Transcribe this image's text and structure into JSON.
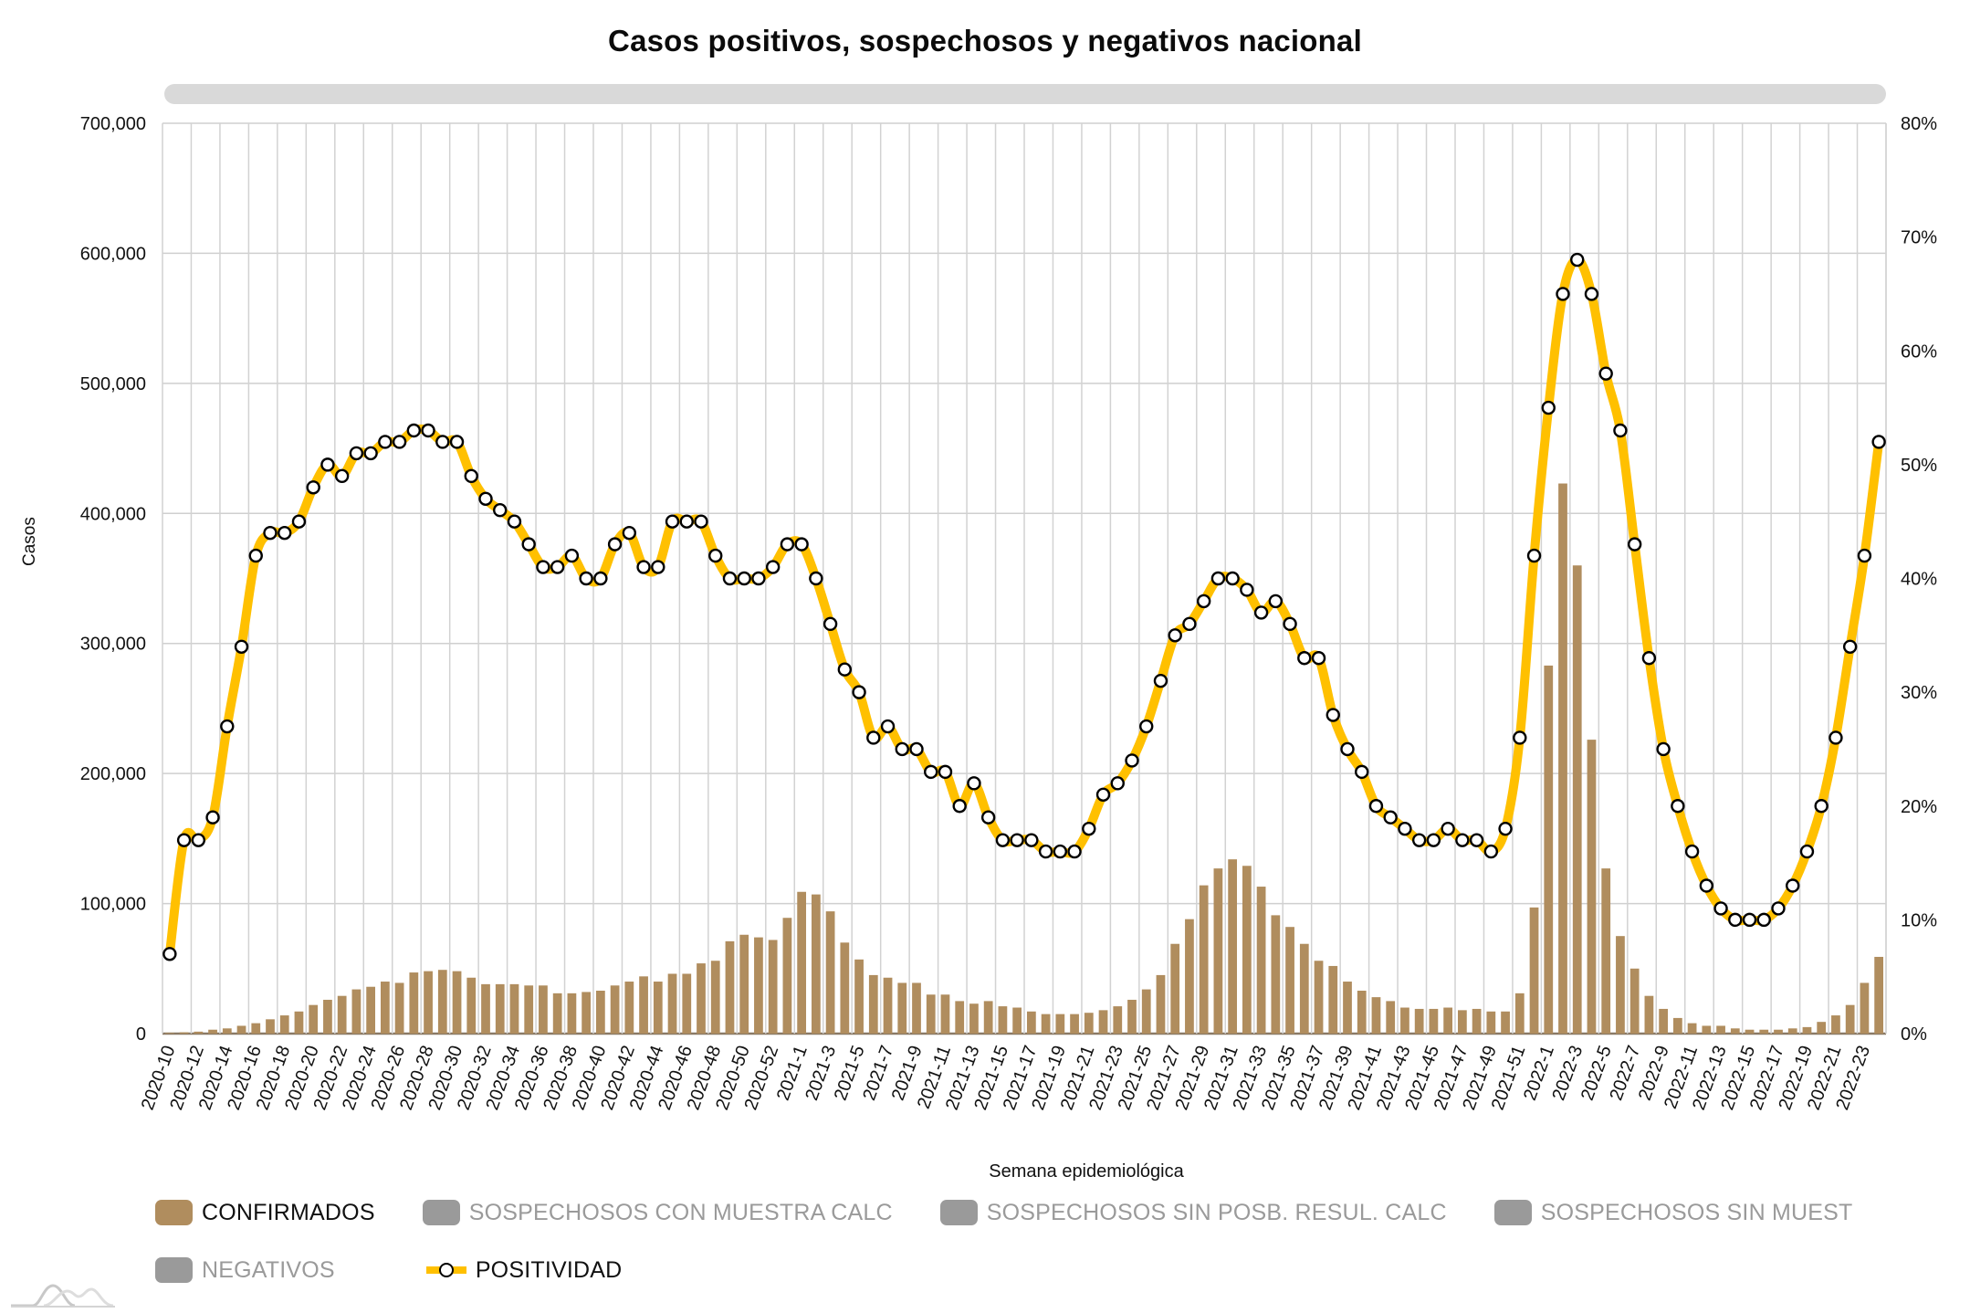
{
  "title": "Casos positivos, sospechosos y negativos nacional",
  "colors": {
    "confirmados": "#B08D5E",
    "inactive": "#9a9a9a",
    "positividad_line": "#FFC000",
    "grid": "#cfcfcf",
    "scrollbar": "#d9d9d9"
  },
  "legend": [
    {
      "label": "CONFIRMADOS",
      "active": true,
      "type": "bar",
      "icon": "square-swatch"
    },
    {
      "label": "SOSPECHOSOS CON MUESTRA CALC",
      "active": false,
      "type": "bar",
      "icon": "square-swatch"
    },
    {
      "label": "SOSPECHOSOS SIN POSB. RESUL. CALC",
      "active": false,
      "type": "bar",
      "icon": "square-swatch"
    },
    {
      "label": "SOSPECHOSOS SIN MUEST",
      "active": false,
      "type": "bar",
      "icon": "square-swatch"
    },
    {
      "label": "NEGATIVOS",
      "active": false,
      "type": "bar",
      "icon": "square-swatch"
    },
    {
      "label": "POSITIVIDAD",
      "active": true,
      "type": "line",
      "icon": "line-marker-swatch"
    }
  ],
  "chart_data": {
    "type": "bar",
    "title": "Casos positivos, sospechosos y negativos nacional",
    "xlabel": "Semana epidemiológica",
    "ylabel": "Casos",
    "y2label": "",
    "ylim": [
      0,
      700000
    ],
    "y2lim": [
      0,
      80
    ],
    "yticks": [
      "0",
      "100,000",
      "200,000",
      "300,000",
      "400,000",
      "500,000",
      "600,000",
      "700,000"
    ],
    "y2ticks": [
      "0%",
      "10%",
      "20%",
      "30%",
      "40%",
      "50%",
      "60%",
      "70%",
      "80%"
    ],
    "grid": true,
    "legend_position": "bottom",
    "categories": [
      "2020-10",
      "2020-11",
      "2020-12",
      "2020-13",
      "2020-14",
      "2020-15",
      "2020-16",
      "2020-17",
      "2020-18",
      "2020-19",
      "2020-20",
      "2020-21",
      "2020-22",
      "2020-23",
      "2020-24",
      "2020-25",
      "2020-26",
      "2020-27",
      "2020-28",
      "2020-29",
      "2020-30",
      "2020-31",
      "2020-32",
      "2020-33",
      "2020-34",
      "2020-35",
      "2020-36",
      "2020-37",
      "2020-38",
      "2020-39",
      "2020-40",
      "2020-41",
      "2020-42",
      "2020-43",
      "2020-44",
      "2020-45",
      "2020-46",
      "2020-47",
      "2020-48",
      "2020-49",
      "2020-50",
      "2020-51",
      "2020-52",
      "2020-53",
      "2021-1",
      "2021-2",
      "2021-3",
      "2021-4",
      "2021-5",
      "2021-6",
      "2021-7",
      "2021-8",
      "2021-9",
      "2021-10",
      "2021-11",
      "2021-12",
      "2021-13",
      "2021-14",
      "2021-15",
      "2021-16",
      "2021-17",
      "2021-18",
      "2021-19",
      "2021-20",
      "2021-21",
      "2021-22",
      "2021-23",
      "2021-24",
      "2021-25",
      "2021-26",
      "2021-27",
      "2021-28",
      "2021-29",
      "2021-30",
      "2021-31",
      "2021-32",
      "2021-33",
      "2021-34",
      "2021-35",
      "2021-36",
      "2021-37",
      "2021-38",
      "2021-39",
      "2021-40",
      "2021-41",
      "2021-42",
      "2021-43",
      "2021-44",
      "2021-45",
      "2021-46",
      "2021-47",
      "2021-48",
      "2021-49",
      "2021-50",
      "2021-51",
      "2021-52",
      "2022-1",
      "2022-2",
      "2022-3",
      "2022-4",
      "2022-5",
      "2022-6",
      "2022-7",
      "2022-8",
      "2022-9",
      "2022-10",
      "2022-11",
      "2022-12",
      "2022-13",
      "2022-14",
      "2022-15",
      "2022-16",
      "2022-17",
      "2022-18",
      "2022-19",
      "2022-20",
      "2022-21",
      "2022-22",
      "2022-23",
      "2022-24"
    ],
    "x_tick_labels_shown": "every second week",
    "series": [
      {
        "name": "CONFIRMADOS",
        "type": "bar",
        "axis": "left",
        "values": [
          500,
          1000,
          1500,
          3000,
          4000,
          6000,
          8000,
          11000,
          14000,
          17000,
          22000,
          26000,
          29000,
          34000,
          36000,
          40000,
          39000,
          47000,
          48000,
          49000,
          48000,
          43000,
          38000,
          38000,
          38000,
          37000,
          37000,
          31000,
          31000,
          32000,
          33000,
          37000,
          40000,
          44000,
          40000,
          46000,
          46000,
          54000,
          56000,
          71000,
          76000,
          74000,
          72000,
          89000,
          109000,
          107000,
          94000,
          70000,
          57000,
          45000,
          43000,
          39000,
          39000,
          30000,
          30000,
          25000,
          23000,
          25000,
          21000,
          20000,
          17000,
          15000,
          15000,
          15000,
          16000,
          18000,
          21000,
          26000,
          34000,
          45000,
          69000,
          88000,
          114000,
          127000,
          134000,
          129000,
          113000,
          91000,
          82000,
          69000,
          56000,
          52000,
          40000,
          33000,
          28000,
          25000,
          20000,
          19000,
          19000,
          20000,
          18000,
          19000,
          17000,
          17000,
          31000,
          97000,
          283000,
          423000,
          360000,
          226000,
          127000,
          75000,
          50000,
          29000,
          19000,
          12000,
          8000,
          6000,
          6000,
          4000,
          3000,
          3000,
          3000,
          4000,
          5000,
          9000,
          14000,
          22000,
          39000,
          59000
        ]
      },
      {
        "name": "POSITIVIDAD",
        "type": "line",
        "axis": "right",
        "unit": "%",
        "values": [
          7,
          17,
          17,
          19,
          27,
          34,
          42,
          44,
          44,
          45,
          48,
          50,
          49,
          51,
          51,
          52,
          52,
          53,
          53,
          52,
          52,
          49,
          47,
          46,
          45,
          43,
          41,
          41,
          42,
          40,
          40,
          43,
          44,
          41,
          41,
          45,
          45,
          45,
          42,
          40,
          40,
          40,
          41,
          43,
          43,
          40,
          36,
          32,
          30,
          26,
          27,
          25,
          25,
          23,
          23,
          20,
          22,
          19,
          17,
          17,
          17,
          16,
          16,
          16,
          18,
          21,
          22,
          24,
          27,
          31,
          35,
          36,
          38,
          40,
          40,
          39,
          37,
          38,
          36,
          33,
          33,
          28,
          25,
          23,
          20,
          19,
          18,
          17,
          17,
          18,
          17,
          17,
          16,
          18,
          26,
          42,
          55,
          65,
          68,
          65,
          58,
          53,
          43,
          33,
          25,
          20,
          16,
          13,
          11,
          10,
          10,
          10,
          11,
          13,
          16,
          20,
          26,
          34,
          42,
          52
        ]
      }
    ]
  },
  "logo": {
    "icon": "mountain-wave-logo-icon"
  }
}
